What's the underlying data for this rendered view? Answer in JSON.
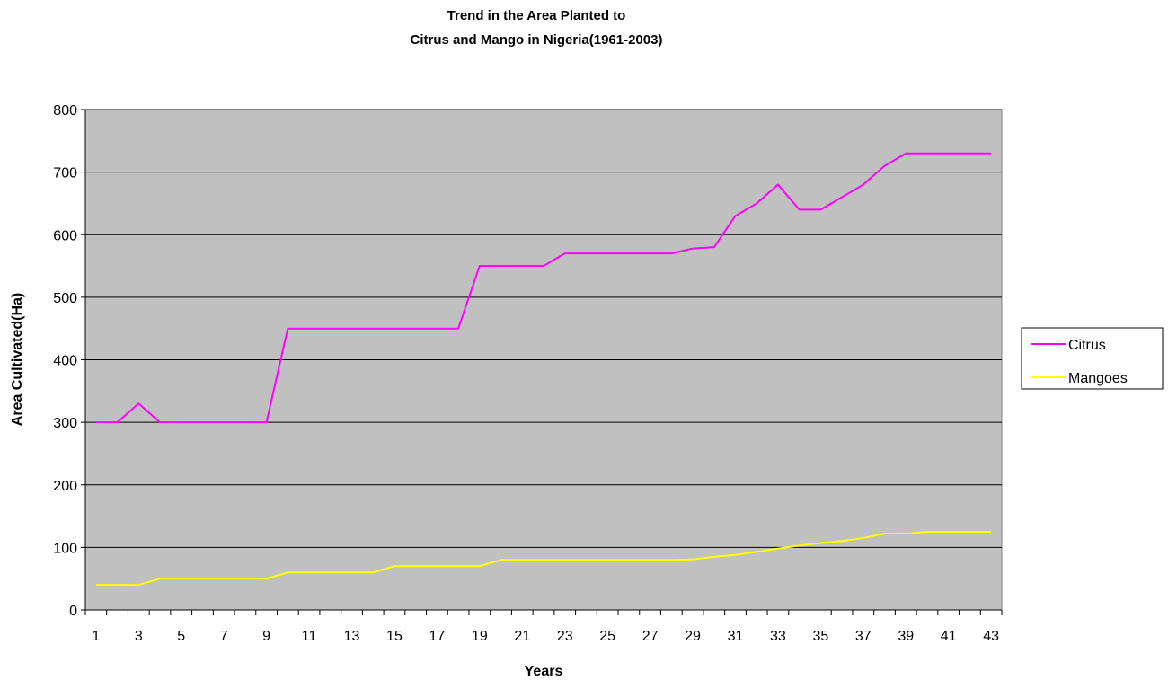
{
  "chart_data": {
    "type": "line",
    "title": [
      "Trend in the Area Planted to",
      "Citrus and Mango in Nigeria(1961-2003)"
    ],
    "xlabel": "Years",
    "ylabel": "Area Cultivated(Ha)",
    "x": [
      1,
      2,
      3,
      4,
      5,
      6,
      7,
      8,
      9,
      10,
      11,
      12,
      13,
      14,
      15,
      16,
      17,
      18,
      19,
      20,
      21,
      22,
      23,
      24,
      25,
      26,
      27,
      28,
      29,
      30,
      31,
      32,
      33,
      34,
      35,
      36,
      37,
      38,
      39,
      40,
      41,
      42,
      43
    ],
    "xtick_labels": [
      "1",
      "3",
      "5",
      "7",
      "9",
      "11",
      "13",
      "15",
      "17",
      "19",
      "21",
      "23",
      "25",
      "27",
      "29",
      "31",
      "33",
      "35",
      "37",
      "39",
      "41",
      "43"
    ],
    "ylim": [
      0,
      800
    ],
    "yticks": [
      0,
      100,
      200,
      300,
      400,
      500,
      600,
      700,
      800
    ],
    "grid": true,
    "plot_background": "#c0c0c0",
    "legend_position": "right",
    "series": [
      {
        "name": "Citrus",
        "color": "#ff00ff",
        "values": [
          300,
          300,
          330,
          300,
          300,
          300,
          300,
          300,
          300,
          450,
          450,
          450,
          450,
          450,
          450,
          450,
          450,
          450,
          550,
          550,
          550,
          550,
          570,
          570,
          570,
          570,
          570,
          570,
          578,
          580,
          630,
          650,
          680,
          640,
          640,
          660,
          680,
          710,
          730,
          730,
          730,
          730,
          730
        ]
      },
      {
        "name": "Mangoes",
        "color": "#ffff00",
        "values": [
          40,
          40,
          40,
          50,
          50,
          50,
          50,
          50,
          50,
          60,
          60,
          60,
          60,
          60,
          70,
          70,
          70,
          70,
          70,
          80,
          80,
          80,
          80,
          80,
          80,
          80,
          80,
          80,
          81,
          85,
          88,
          93,
          98,
          103,
          107,
          110,
          115,
          122,
          122,
          125,
          125,
          125,
          125
        ]
      }
    ]
  }
}
